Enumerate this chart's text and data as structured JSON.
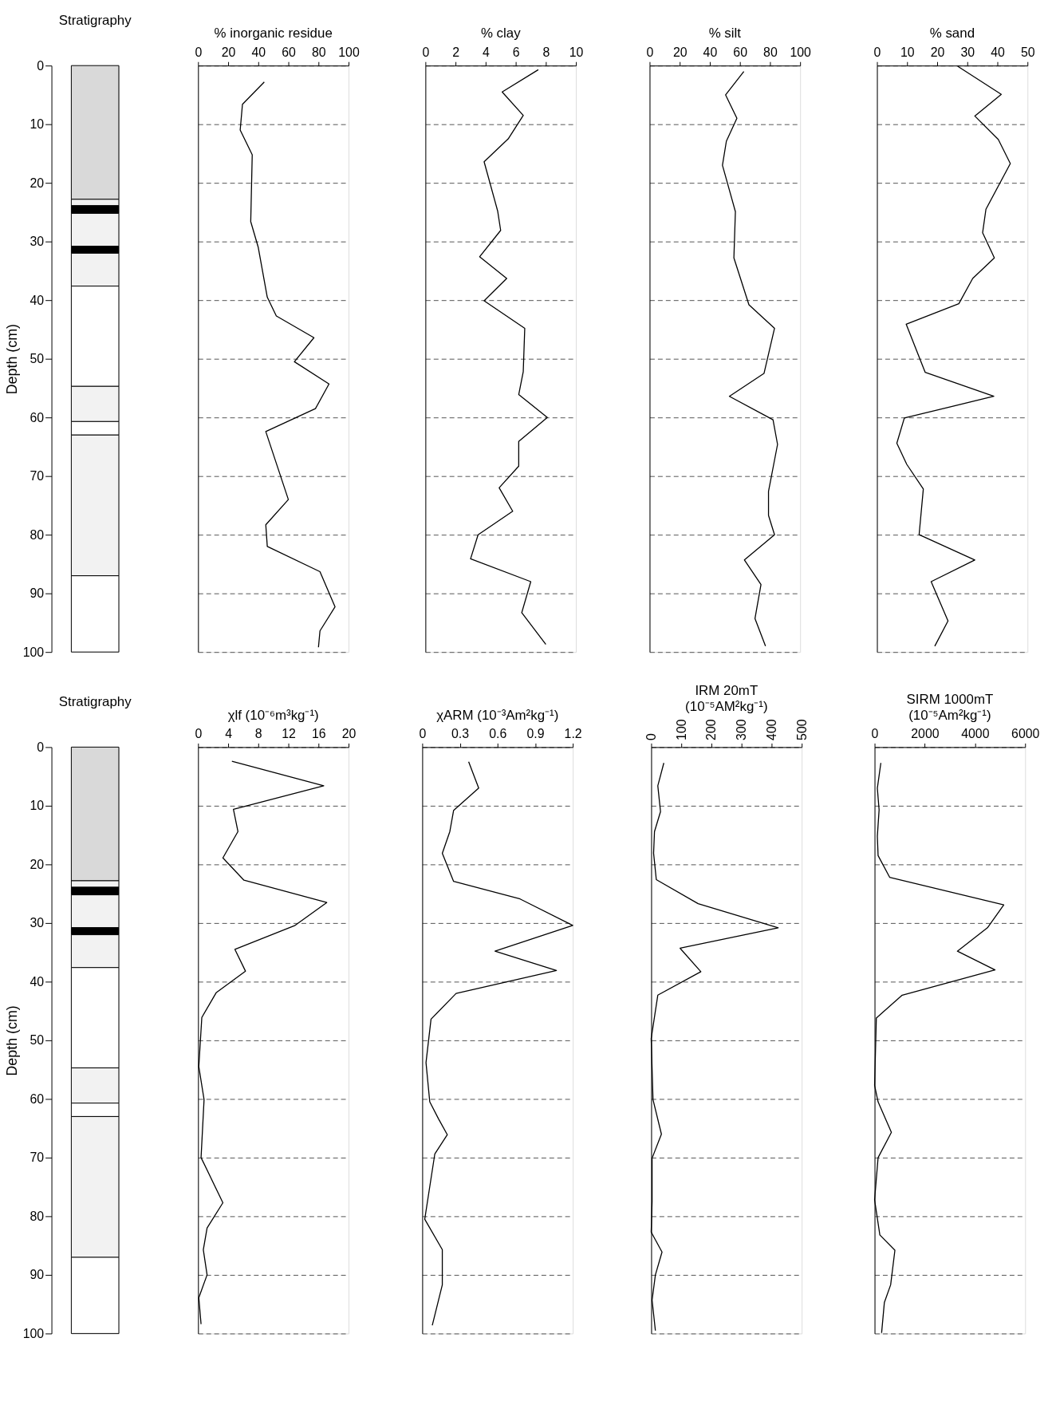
{
  "chart_data": [
    {
      "type": "bar",
      "title": "Stratigraphy",
      "ylabel": "Depth (cm)",
      "categories": [
        null
      ],
      "stacked": true,
      "ylim": [
        100,
        0
      ],
      "yticks": [
        0,
        10,
        20,
        30,
        40,
        50,
        60,
        70,
        80,
        90,
        100
      ],
      "tick_labels": "y",
      "grid": false,
      "legend": false,
      "series": [
        {
          "color": "#d9d9d9",
          "values": [
            22.8
          ]
        },
        {
          "color": "#f2f2f2",
          "values": [
            1.1
          ]
        },
        {
          "color": "#000000",
          "values": [
            1.3
          ]
        },
        {
          "color": "#f2f2f2",
          "values": [
            5.6
          ]
        },
        {
          "color": "#000000",
          "values": [
            1.2
          ]
        },
        {
          "color": "#f2f2f2",
          "values": [
            5.6
          ]
        },
        {
          "color": "#ffffff",
          "values": [
            17.1
          ]
        },
        {
          "color": "#f2f2f2",
          "values": [
            6
          ]
        },
        {
          "color": "#ffffff",
          "values": [
            2.3
          ]
        },
        {
          "color": "#f2f2f2",
          "values": [
            24
          ]
        },
        {
          "color": "#ffffff",
          "values": [
            13
          ]
        }
      ]
    },
    {
      "type": "line",
      "title": "% inorganic residue",
      "orientation": "horizontal",
      "xlim": [
        0,
        100
      ],
      "xticks": [
        0,
        20,
        40,
        60,
        80,
        100
      ],
      "ylim": [
        100,
        0
      ],
      "yticks": [
        0,
        10,
        20,
        30,
        40,
        50,
        60,
        70,
        80,
        90,
        100
      ],
      "tick_labels": "x",
      "grid": "y",
      "marker": "none",
      "x": [
        2.8,
        6.6,
        11,
        15.2,
        26.6,
        31,
        39.5,
        42.7,
        46.4,
        50.5,
        54.3,
        58.5,
        62.4,
        74,
        78.3,
        82,
        86.3,
        92.3,
        96.4,
        99.2
      ],
      "series": [
        {
          "color": "#000000",
          "values": [
            44,
            29.5,
            28,
            36,
            35,
            40,
            46,
            52,
            77,
            64,
            87,
            78,
            45,
            60,
            45,
            46,
            81,
            91,
            81,
            80
          ]
        }
      ]
    },
    {
      "type": "line",
      "title": "% clay",
      "orientation": "horizontal",
      "xlim": [
        0,
        10
      ],
      "xticks": [
        0,
        2,
        4,
        6,
        8,
        10
      ],
      "ylim": [
        100,
        0
      ],
      "yticks": [
        0,
        10,
        20,
        30,
        40,
        50,
        60,
        70,
        80,
        90,
        100
      ],
      "tick_labels": "x",
      "grid": "y",
      "marker": "none",
      "x": [
        0.7,
        4.5,
        8.5,
        12.5,
        16.4,
        24.8,
        28.1,
        32.6,
        36.3,
        40.1,
        44.8,
        52.2,
        56.1,
        60,
        64.1,
        68.3,
        72,
        76,
        80,
        84.1,
        88,
        93.3,
        98.7
      ],
      "series": [
        {
          "color": "#000000",
          "values": [
            7.5,
            5.1,
            6.5,
            5.5,
            3.9,
            4.8,
            5.0,
            3.6,
            5.4,
            3.9,
            6.6,
            6.5,
            6.2,
            8.1,
            6.2,
            6.2,
            4.9,
            5.8,
            3.5,
            3.0,
            7.0,
            6.4,
            8.0
          ]
        }
      ]
    },
    {
      "type": "line",
      "title": "% silt",
      "orientation": "horizontal",
      "xlim": [
        0,
        100
      ],
      "xticks": [
        0,
        20,
        40,
        60,
        80,
        100
      ],
      "ylim": [
        100,
        0
      ],
      "yticks": [
        0,
        10,
        20,
        30,
        40,
        50,
        60,
        70,
        80,
        90,
        100
      ],
      "tick_labels": "x",
      "grid": "y",
      "marker": "none",
      "x": [
        1.0,
        5.0,
        9.0,
        12.9,
        17,
        24.9,
        32.8,
        40.8,
        44.8,
        52.5,
        56.4,
        60.4,
        64.6,
        72.6,
        76.7,
        80,
        84.3,
        88.5,
        94.3,
        99
      ],
      "series": [
        {
          "color": "#000000",
          "values": [
            62.6,
            50.5,
            58,
            51,
            48.4,
            57,
            56,
            66,
            83,
            76,
            53,
            82,
            85,
            79,
            79,
            83,
            63,
            74,
            70,
            77
          ]
        }
      ]
    },
    {
      "type": "line",
      "title": "% sand",
      "orientation": "horizontal",
      "xlim": [
        0,
        50
      ],
      "xticks": [
        0,
        10,
        20,
        30,
        40,
        50
      ],
      "ylim": [
        100,
        0
      ],
      "yticks": [
        0,
        10,
        20,
        30,
        40,
        50,
        60,
        70,
        80,
        90,
        100
      ],
      "tick_labels": "x",
      "grid": "y",
      "marker": "none",
      "x": [
        0.1,
        4.9,
        8.6,
        12.6,
        16.7,
        24.5,
        28.5,
        32.8,
        36.3,
        40.6,
        44.1,
        52.3,
        56.4,
        60.1,
        64.4,
        68,
        72.2,
        80,
        84.3,
        88,
        94.7,
        99
      ],
      "series": [
        {
          "color": "#000000",
          "values": [
            26.8,
            41.3,
            32.5,
            40.3,
            44.3,
            36.2,
            35.1,
            39,
            31.8,
            27.2,
            9.7,
            16,
            38.8,
            9.1,
            6.6,
            9.9,
            15.4,
            14,
            32.5,
            18,
            23.6,
            19.2
          ]
        }
      ]
    },
    {
      "type": "bar",
      "title": "Stratigraphy",
      "ylabel": "Depth (cm)",
      "categories": [
        null
      ],
      "stacked": true,
      "ylim": [
        100,
        0
      ],
      "yticks": [
        0,
        10,
        20,
        30,
        40,
        50,
        60,
        70,
        80,
        90,
        100
      ],
      "tick_labels": "y",
      "grid": false,
      "legend": false,
      "series": [
        {
          "color": "#d9d9d9",
          "values": [
            22.8
          ]
        },
        {
          "color": "#f2f2f2",
          "values": [
            1.1
          ]
        },
        {
          "color": "#000000",
          "values": [
            1.3
          ]
        },
        {
          "color": "#f2f2f2",
          "values": [
            5.6
          ]
        },
        {
          "color": "#000000",
          "values": [
            1.2
          ]
        },
        {
          "color": "#f2f2f2",
          "values": [
            5.6
          ]
        },
        {
          "color": "#ffffff",
          "values": [
            17.1
          ]
        },
        {
          "color": "#f2f2f2",
          "values": [
            6
          ]
        },
        {
          "color": "#ffffff",
          "values": [
            2.3
          ]
        },
        {
          "color": "#f2f2f2",
          "values": [
            24
          ]
        },
        {
          "color": "#ffffff",
          "values": [
            13
          ]
        }
      ]
    },
    {
      "type": "line",
      "title": "χlf (10⁻⁶m³kg⁻¹)",
      "orientation": "horizontal",
      "xlim": [
        0,
        20
      ],
      "xticks": [
        0,
        4,
        8,
        12,
        16,
        20
      ],
      "ylim": [
        100,
        0
      ],
      "yticks": [
        0,
        10,
        20,
        30,
        40,
        50,
        60,
        70,
        80,
        90,
        100
      ],
      "tick_labels": "x",
      "grid": "y",
      "marker": "none",
      "x": [
        2.4,
        6.6,
        10.6,
        14.4,
        18.9,
        22.7,
        26.5,
        30.4,
        34.5,
        38.2,
        41.9,
        46.1,
        54.5,
        60.1,
        70,
        77.7,
        82,
        85.7,
        90,
        93.9,
        98.4
      ],
      "series": [
        {
          "color": "#000000",
          "values": [
            4.5,
            16.7,
            4.7,
            5.3,
            3.3,
            6.1,
            17.1,
            12.9,
            4.9,
            6.3,
            2.4,
            0.5,
            0.1,
            0.8,
            0.4,
            3.3,
            1.2,
            0.7,
            1.2,
            0.1,
            0.4
          ]
        }
      ]
    },
    {
      "type": "line",
      "title": "χARM (10⁻³Am²kg⁻¹)",
      "orientation": "horizontal",
      "xlim": [
        0,
        1.2
      ],
      "xticks": [
        0,
        0.3,
        0.6,
        0.9,
        1.2
      ],
      "ylim": [
        100,
        0
      ],
      "yticks": [
        0,
        10,
        20,
        30,
        40,
        50,
        60,
        70,
        80,
        90,
        100
      ],
      "tick_labels": "x",
      "grid": "y",
      "marker": "none",
      "x": [
        2.5,
        7,
        10.8,
        14.4,
        18.1,
        22.9,
        25.9,
        30.4,
        34.8,
        38.1,
        42,
        46.4,
        53.8,
        60.5,
        63.4,
        66.1,
        69.4,
        80.5,
        85.7,
        91.7,
        98.6
      ],
      "series": [
        {
          "color": "#000000",
          "values": [
            0.37,
            0.45,
            0.25,
            0.22,
            0.16,
            0.25,
            0.78,
            1.2,
            0.58,
            1.07,
            0.27,
            0.07,
            0.03,
            0.06,
            0.13,
            0.2,
            0.1,
            0.02,
            0.16,
            0.16,
            0.08
          ]
        }
      ]
    },
    {
      "type": "line",
      "title": "IRM 20mT",
      "subtitle": "(10⁻⁵AM²kg⁻¹)",
      "orientation": "horizontal",
      "xlim": [
        0,
        500
      ],
      "xticks": [
        0,
        100,
        200,
        300,
        400,
        500
      ],
      "ylim": [
        100,
        0
      ],
      "yticks": [
        0,
        10,
        20,
        30,
        40,
        50,
        60,
        70,
        80,
        90,
        100
      ],
      "tick_labels": "x",
      "grid": "y",
      "marker": "none",
      "x": [
        2.7,
        6.6,
        11,
        14.4,
        18.1,
        22.6,
        26.7,
        30.8,
        34.3,
        38.3,
        42.3,
        49.7,
        60.1,
        66,
        70.1,
        77.5,
        82.7,
        86.1,
        90,
        94.3,
        99.5
      ],
      "series": [
        {
          "color": "#000000",
          "values": [
            42,
            22,
            31,
            11,
            8,
            17,
            156,
            422,
            96,
            165,
            22,
            0,
            6,
            34,
            3,
            3,
            0,
            36,
            14,
            3,
            14
          ]
        }
      ]
    },
    {
      "type": "line",
      "title": "SIRM 1000mT",
      "subtitle": "(10⁻⁵Am²kg⁻¹)",
      "orientation": "horizontal",
      "xlim": [
        0,
        6000
      ],
      "xticks": [
        0,
        2000,
        4000,
        6000
      ],
      "ylim": [
        100,
        0
      ],
      "yticks": [
        0,
        10,
        20,
        30,
        40,
        50,
        60,
        70,
        80,
        90,
        100
      ],
      "tick_labels": "x",
      "grid": "y",
      "marker": "none",
      "x": [
        2.7,
        7,
        10.7,
        15.2,
        18.5,
        22.2,
        26.9,
        30.8,
        34.8,
        38,
        42.3,
        46.2,
        57.7,
        60.5,
        65.7,
        70,
        77.2,
        83.2,
        85.8,
        91.7,
        94.7,
        99.9
      ],
      "series": [
        {
          "color": "#000000",
          "values": [
            250,
            110,
            180,
            110,
            140,
            600,
            5150,
            4500,
            3300,
            4800,
            1100,
            70,
            0,
            140,
            670,
            140,
            0,
            210,
            810,
            640,
            390,
            280
          ]
        }
      ]
    }
  ]
}
